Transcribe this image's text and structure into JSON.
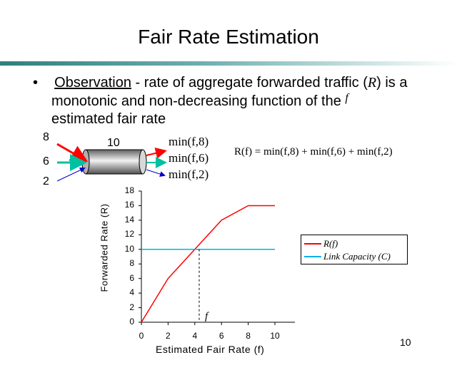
{
  "slide": {
    "title": "Fair Rate Estimation",
    "number": "10",
    "bullet": {
      "marker": "•",
      "label": "Observation",
      "line1_rest": " - rate of aggregate forwarded traffic (",
      "line1_var": "R",
      "line1_end": ") is a",
      "line2": "monotonic and non-decreasing function of the",
      "line2_var": "f",
      "line3": "estimated fair rate"
    },
    "link_diagram": {
      "inputs": [
        "8",
        "6",
        "2"
      ],
      "capacity": "10",
      "outputs": [
        "min(f,8)",
        "min(f,6)",
        "min(f,2)"
      ],
      "formula": "R(f) = min(f,8) + min(f,6) + min(f,2)",
      "colors": {
        "input_8": "#ff0000",
        "input_6": "#00c0a0",
        "input_2": "#0000cc"
      }
    }
  },
  "chart_data": {
    "type": "line",
    "xlabel": "Estimated Fair Rate (f)",
    "ylabel": "Forwarded Rate (R)",
    "xlim": [
      0,
      10
    ],
    "ylim": [
      0,
      18
    ],
    "xticks": [
      0,
      2,
      4,
      6,
      8,
      10
    ],
    "yticks": [
      0,
      2,
      4,
      6,
      8,
      10,
      12,
      14,
      16,
      18
    ],
    "grid": false,
    "legend_position": "right",
    "series": [
      {
        "name": "R(f)",
        "color": "#ff0000",
        "x": [
          0,
          2,
          4,
          6,
          8,
          10
        ],
        "y": [
          0,
          6,
          10,
          14,
          16,
          16
        ]
      },
      {
        "name": "Link Capacity (C)",
        "color": "#00b0f0",
        "x": [
          0,
          10
        ],
        "y": [
          10,
          10
        ]
      }
    ],
    "annotations": [
      {
        "text": "f",
        "x": 4.33,
        "y": 10,
        "style": "dashed-drop-line"
      }
    ]
  }
}
